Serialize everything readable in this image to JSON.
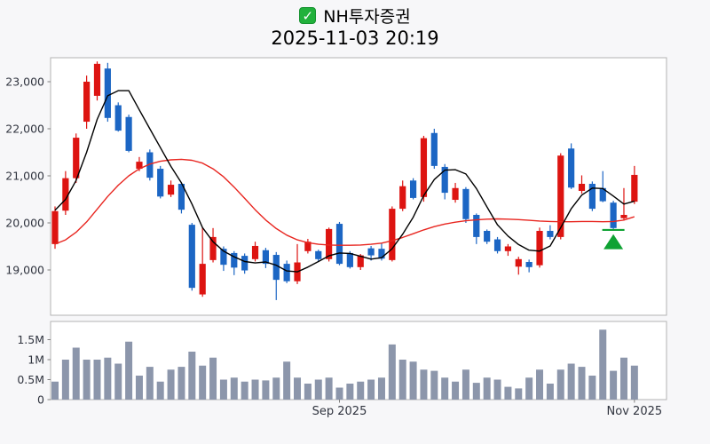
{
  "header": {
    "checkbox_icon": "✓",
    "title": "NH투자증권",
    "datetime": "2025-11-03 20:19"
  },
  "colors": {
    "up_candle": "#dd1411",
    "down_candle": "#1c66c4",
    "ma_short": "#000000",
    "ma_long": "#e8251f",
    "volume_bar": "#8c96ab",
    "marker_green": "#0fa233",
    "background": "#f7f7f9",
    "panel_bg": "#ffffff",
    "panel_border": "#b3b3b3",
    "tick_color": "#808080",
    "tick_text": "#30343f"
  },
  "chart_data": {
    "type": "candlestick",
    "title": "NH투자증권",
    "subtitle": "2025-11-03 20:19",
    "legend_position": "none",
    "grid": false,
    "price_axis": {
      "ticks": [
        {
          "label": "23,000",
          "value": 23000
        },
        {
          "label": "22,000",
          "value": 22000
        },
        {
          "label": "21,000",
          "value": 21000
        },
        {
          "label": "20,000",
          "value": 20000
        },
        {
          "label": "19,000",
          "value": 19000
        }
      ],
      "range": [
        18040,
        23510
      ]
    },
    "volume_axis": {
      "unit": "M",
      "ticks": [
        {
          "label": "1.5M",
          "value": 1.5
        },
        {
          "label": "1M",
          "value": 1.0
        },
        {
          "label": "0.5M",
          "value": 0.5
        },
        {
          "label": "0",
          "value": 0
        }
      ],
      "range": [
        0,
        1.95
      ]
    },
    "x_axis": {
      "ticks": [
        {
          "label": "Sep 2025",
          "index": 27
        },
        {
          "label": "Nov 2025",
          "index": 55
        }
      ]
    },
    "candles_ohlc": [
      [
        19550,
        20350,
        19450,
        20250
      ],
      [
        20260,
        21100,
        20170,
        20950
      ],
      [
        20950,
        21900,
        20850,
        21810
      ],
      [
        22150,
        23130,
        22000,
        23000
      ],
      [
        22700,
        23430,
        22600,
        23380
      ],
      [
        23280,
        23400,
        22150,
        22230
      ],
      [
        22500,
        22560,
        21940,
        21960
      ],
      [
        22250,
        22300,
        21500,
        21530
      ],
      [
        21150,
        21400,
        21100,
        21300
      ],
      [
        21500,
        21560,
        20900,
        20960
      ],
      [
        21150,
        21210,
        20520,
        20560
      ],
      [
        20600,
        20900,
        20550,
        20810
      ],
      [
        20830,
        20860,
        20200,
        20280
      ],
      [
        19960,
        20000,
        18560,
        18620
      ],
      [
        18480,
        19900,
        18430,
        19130
      ],
      [
        19210,
        19890,
        19160,
        19700
      ],
      [
        19450,
        19500,
        18980,
        19110
      ],
      [
        19360,
        19400,
        18890,
        19050
      ],
      [
        19300,
        19350,
        18920,
        18990
      ],
      [
        19230,
        19600,
        19180,
        19510
      ],
      [
        19420,
        19470,
        19040,
        19130
      ],
      [
        19320,
        19380,
        18360,
        18790
      ],
      [
        19130,
        19200,
        18720,
        18760
      ],
      [
        18760,
        19550,
        18700,
        19160
      ],
      [
        19400,
        19660,
        19350,
        19600
      ],
      [
        19400,
        19430,
        19180,
        19230
      ],
      [
        19230,
        19900,
        19180,
        19870
      ],
      [
        19980,
        20020,
        19100,
        19130
      ],
      [
        19360,
        19400,
        19030,
        19060
      ],
      [
        19060,
        19340,
        19000,
        19310
      ],
      [
        19460,
        19510,
        19200,
        19310
      ],
      [
        19450,
        19560,
        19200,
        19240
      ],
      [
        19210,
        20350,
        19180,
        20300
      ],
      [
        20300,
        20900,
        20250,
        20780
      ],
      [
        20900,
        20950,
        20500,
        20530
      ],
      [
        20550,
        21850,
        20450,
        21800
      ],
      [
        21910,
        22000,
        21150,
        21210
      ],
      [
        21190,
        21250,
        20500,
        20640
      ],
      [
        20490,
        20850,
        20430,
        20740
      ],
      [
        20720,
        20760,
        20000,
        20080
      ],
      [
        20170,
        20200,
        19550,
        19700
      ],
      [
        19830,
        19860,
        19550,
        19600
      ],
      [
        19650,
        19700,
        19350,
        19400
      ],
      [
        19400,
        19550,
        19300,
        19500
      ],
      [
        19070,
        19280,
        18900,
        19230
      ],
      [
        19170,
        19220,
        18950,
        19060
      ],
      [
        19100,
        19900,
        19050,
        19830
      ],
      [
        19830,
        19950,
        19650,
        19700
      ],
      [
        19700,
        21480,
        19650,
        21430
      ],
      [
        21580,
        21690,
        20720,
        20750
      ],
      [
        20680,
        21010,
        20620,
        20830
      ],
      [
        20830,
        20880,
        20250,
        20300
      ],
      [
        20740,
        21100,
        20440,
        20460
      ],
      [
        20430,
        20470,
        19860,
        19890
      ],
      [
        20100,
        20740,
        20050,
        20170
      ],
      [
        20450,
        21210,
        20400,
        21020
      ]
    ],
    "volumes_m": [
      0.45,
      1.0,
      1.3,
      1.0,
      1.0,
      1.05,
      0.9,
      1.45,
      0.6,
      0.82,
      0.45,
      0.75,
      0.82,
      1.2,
      0.85,
      1.05,
      0.5,
      0.55,
      0.45,
      0.5,
      0.48,
      0.55,
      0.95,
      0.55,
      0.4,
      0.5,
      0.55,
      0.3,
      0.4,
      0.45,
      0.5,
      0.55,
      1.38,
      1.0,
      0.95,
      0.75,
      0.72,
      0.55,
      0.45,
      0.75,
      0.42,
      0.55,
      0.5,
      0.32,
      0.28,
      0.55,
      0.75,
      0.4,
      0.75,
      0.9,
      0.82,
      0.6,
      1.75,
      0.72,
      1.05,
      0.85
    ],
    "ma_short_values": [
      20270,
      20500,
      20900,
      21500,
      22200,
      22700,
      22810,
      22810,
      22400,
      22000,
      21600,
      21200,
      20850,
      20400,
      19900,
      19600,
      19400,
      19280,
      19180,
      19150,
      19170,
      19100,
      18980,
      18960,
      19060,
      19180,
      19300,
      19360,
      19350,
      19290,
      19230,
      19260,
      19450,
      19760,
      20120,
      20580,
      20920,
      21120,
      21130,
      21040,
      20730,
      20340,
      19960,
      19720,
      19540,
      19420,
      19400,
      19510,
      19900,
      20300,
      20590,
      20740,
      20730,
      20570,
      20400,
      20460
    ],
    "ma_long_values": [
      19550,
      19640,
      19800,
      20020,
      20290,
      20560,
      20800,
      21000,
      21150,
      21250,
      21310,
      21340,
      21350,
      21330,
      21270,
      21150,
      20980,
      20760,
      20520,
      20280,
      20060,
      19880,
      19740,
      19640,
      19580,
      19545,
      19530,
      19525,
      19525,
      19530,
      19545,
      19570,
      19620,
      19690,
      19770,
      19850,
      19920,
      19975,
      20015,
      20045,
      20065,
      20080,
      20085,
      20080,
      20070,
      20055,
      20040,
      20030,
      20025,
      20025,
      20030,
      20030,
      20025,
      20030,
      20060,
      20130
    ],
    "marker": {
      "type": "triangle-up",
      "candle_index": 53,
      "apex_price": 19760,
      "base_price": 19440,
      "line_price": 19850
    }
  }
}
